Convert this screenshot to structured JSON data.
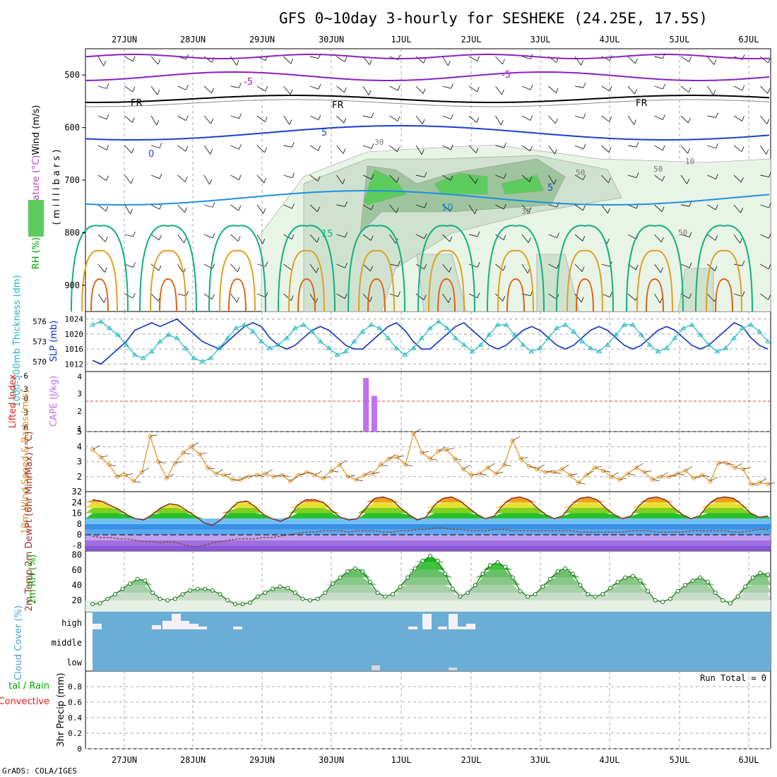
{
  "title": "GFS 0~10day 3-hourly for SESHEKE (24.25E, 17.5S)",
  "footer": "GrADS: COLA/IGES",
  "colors": {
    "temp_neg": "#8a1fc4",
    "temp_zero": "#000000",
    "temp_pos_blue": "#1a3fd1",
    "temp_10": "#1e90e0",
    "temp_15": "#10b080",
    "temp_20": "#e0a020",
    "temp_25": "#e06010",
    "thickness": "#20b8c0",
    "slp": "#1030c0",
    "cape": "#c070f0",
    "lifted_dash": "#e04040",
    "wind10": "#e09020",
    "precip_total": "#00a000",
    "precip_conv": "#e02020",
    "cloud_bg": "#6aaed6"
  },
  "chart_data": [
    {
      "type": "line",
      "name": "upper-air",
      "x_dates": [
        "27JUN",
        "28JUN",
        "29JUN",
        "30JUN",
        "1JUL",
        "2JUL",
        "3JUL",
        "4JUL",
        "5JUL",
        "6JUL"
      ],
      "y_ticks": [
        "500",
        "600",
        "700",
        "800",
        "900"
      ],
      "y_label_parts": [
        "Wind (m/s)",
        "Temperature (°C)",
        "RH (%)"
      ],
      "y_axis_label": "( m i l l i b a r s )",
      "contour_labels": [
        "-5",
        "-5",
        "FR",
        "FR",
        "FR",
        "5",
        "5",
        "0",
        "10",
        "15",
        "10",
        "30",
        "50",
        "50",
        "30",
        "50"
      ]
    },
    {
      "type": "line",
      "name": "thickness-slp",
      "left_ticks": [
        "576",
        "573",
        "570"
      ],
      "right_ticks": [
        "1024",
        "1020",
        "1016",
        "1012"
      ],
      "left_label": "1000-500mb Thickness (dm)",
      "right_label": "SLP (mb)",
      "series": [
        {
          "name": "SLP",
          "values": [
            1013,
            1012,
            1014,
            1016,
            1018,
            1021,
            1022,
            1023,
            1022,
            1023,
            1024,
            1022,
            1020,
            1018,
            1017,
            1016,
            1018,
            1020,
            1022,
            1023,
            1022,
            1019,
            1017,
            1016,
            1017,
            1019,
            1021,
            1022,
            1021,
            1019,
            1017,
            1016,
            1016,
            1018,
            1020,
            1022,
            1023,
            1021,
            1018,
            1016,
            1016,
            1018,
            1020,
            1022,
            1023,
            1021,
            1019,
            1017,
            1016,
            1017,
            1019,
            1021,
            1022,
            1021,
            1019,
            1017,
            1016,
            1017,
            1019,
            1021,
            1022,
            1021,
            1019,
            1017,
            1016,
            1017,
            1019,
            1021,
            1022,
            1021,
            1019,
            1017,
            1016,
            1017,
            1019,
            1021,
            1023,
            1022,
            1019,
            1017,
            1016
          ]
        },
        {
          "name": "Thickness",
          "values": [
            575.5,
            576,
            575,
            574,
            572.5,
            571,
            570.5,
            571.5,
            573,
            574,
            573.5,
            572,
            570.5,
            570,
            570.5,
            572,
            573.5,
            575,
            575.5,
            574.5,
            573,
            572,
            572.5,
            573.5,
            575,
            575.5,
            574.5,
            573,
            572,
            571,
            571.5,
            573,
            574.5,
            575.5,
            575,
            573.5,
            572,
            571,
            572,
            573.5,
            575,
            576,
            575,
            573.5,
            572.5,
            571.5,
            572.5,
            574,
            575.5,
            575.5,
            574,
            572.5,
            571.5,
            572,
            573.5,
            575,
            575.5,
            574.5,
            573,
            572,
            571.5,
            572.5,
            574,
            575.5,
            575.5,
            574,
            572.5,
            571.5,
            572,
            573.5,
            575,
            575.5,
            574,
            572.5,
            571.5,
            572,
            573.5,
            575,
            575.5,
            574.5,
            573
          ]
        }
      ]
    },
    {
      "type": "bar",
      "name": "cape-lifted",
      "left_ticks": [
        "-6",
        "-3",
        "0",
        "3",
        "6"
      ],
      "right_ticks": [
        "4",
        "3",
        "2",
        "1"
      ],
      "left_label": "Lifted Index",
      "right_label": "CAPE (J/kg)",
      "bars": [
        {
          "x": 30.5,
          "value": 4
        },
        {
          "x": 30.62,
          "value": 3
        }
      ]
    },
    {
      "type": "line",
      "name": "wind10m",
      "y_ticks": [
        "5",
        "4",
        "3",
        "2"
      ],
      "y_label": "10m Wind Speed & Barbs (m/s)",
      "values": [
        3.8,
        3.3,
        2.8,
        2.0,
        2.1,
        1.7,
        2.3,
        4.7,
        3.0,
        1.9,
        2.9,
        3.6,
        4.0,
        3.5,
        2.6,
        2.2,
        2.1,
        1.8,
        1.8,
        2.0,
        2.1,
        2.2,
        2.0,
        2.1,
        1.7,
        2.1,
        2.3,
        2.1,
        1.9,
        2.4,
        2.8,
        2.0,
        1.8,
        2.1,
        2.2,
        2.8,
        3.2,
        3.3,
        2.8,
        4.9,
        3.6,
        3.2,
        3.7,
        3.8,
        3.2,
        2.5,
        2.1,
        2.2,
        2.6,
        2.2,
        2.8,
        4.4,
        3.2,
        2.7,
        2.5,
        2.3,
        2.3,
        2.5,
        2.1,
        1.6,
        2.1,
        2.6,
        2.4,
        2.0,
        1.8,
        2.2,
        2.6,
        2.3,
        1.8,
        2.0,
        2.0,
        2.2,
        2.4,
        1.9,
        2.1,
        1.7,
        2.9,
        2.9,
        2.6,
        2.5,
        1.5,
        1.6,
        1.5
      ]
    },
    {
      "type": "area",
      "name": "temp-dewpt",
      "y_ticks": [
        "32",
        "24",
        "16",
        "8",
        "0",
        "-8"
      ],
      "y_label": "2m Temp 2m DewPt (6hr Min/Max) (°C)",
      "temp": [
        26,
        25,
        22,
        19,
        15,
        12,
        11,
        15,
        20,
        23,
        22,
        18,
        14,
        9,
        7,
        11,
        18,
        24,
        25,
        21,
        15,
        12,
        10,
        13,
        22,
        26,
        26,
        24,
        18,
        13,
        11,
        12,
        20,
        27,
        28,
        26,
        20,
        15,
        11,
        13,
        22,
        27,
        28,
        25,
        20,
        15,
        12,
        14,
        22,
        27,
        28,
        26,
        20,
        15,
        12,
        14,
        22,
        27,
        28,
        26,
        20,
        15,
        12,
        14,
        22,
        27,
        28,
        26,
        20,
        15,
        12,
        14,
        22,
        27,
        28,
        27,
        22,
        16,
        13,
        14
      ],
      "dewpt": [
        -1,
        -2,
        -2,
        -3,
        -3,
        -4,
        -5,
        -5,
        -6,
        -5,
        -6,
        -8,
        -9,
        -8,
        -6,
        -5,
        -4,
        -3,
        -3,
        -3,
        -2,
        -2,
        -1,
        0,
        1,
        2,
        2,
        3,
        3,
        3,
        2,
        3,
        3,
        3,
        2,
        2,
        3,
        3,
        4,
        4,
        5,
        5,
        4,
        4,
        3,
        3,
        3,
        4,
        4,
        3,
        3,
        3,
        3,
        3,
        3,
        3,
        3,
        2,
        2,
        2,
        2,
        2,
        2,
        3,
        3,
        3,
        2,
        2,
        2,
        2,
        3,
        3,
        3,
        3,
        3,
        2,
        2,
        3,
        4,
        4
      ]
    },
    {
      "type": "area",
      "name": "rh2m",
      "y_ticks": [
        "80",
        "60",
        "40",
        "20"
      ],
      "y_label": "2m RH (%)",
      "values": [
        15,
        16,
        22,
        28,
        35,
        42,
        48,
        46,
        30,
        22,
        20,
        22,
        28,
        33,
        35,
        35,
        33,
        28,
        20,
        15,
        15,
        17,
        25,
        30,
        35,
        38,
        36,
        30,
        22,
        20,
        22,
        30,
        42,
        50,
        58,
        62,
        58,
        44,
        30,
        25,
        28,
        38,
        50,
        62,
        72,
        78,
        72,
        55,
        35,
        25,
        30,
        40,
        55,
        66,
        70,
        64,
        50,
        32,
        25,
        28,
        38,
        48,
        58,
        62,
        55,
        40,
        28,
        25,
        28,
        36,
        44,
        50,
        52,
        46,
        32,
        20,
        18,
        22,
        32,
        40,
        46,
        50,
        44,
        30,
        20,
        16,
        25,
        38,
        50,
        56,
        54
      ]
    },
    {
      "type": "bar",
      "name": "cloud-cover",
      "y_ticks": [
        "high",
        "middle",
        "low"
      ],
      "y_label": "Cloud Cover (%)"
    },
    {
      "type": "line",
      "name": "precip",
      "y_ticks": [
        "0.8",
        "0.6",
        "0.4",
        "0.2",
        "0"
      ],
      "y_label": "3hr Precip (mm)",
      "left_label_1": "tal / Rain",
      "left_label_2": "Convective",
      "run_total": "Run Total = 0"
    }
  ]
}
